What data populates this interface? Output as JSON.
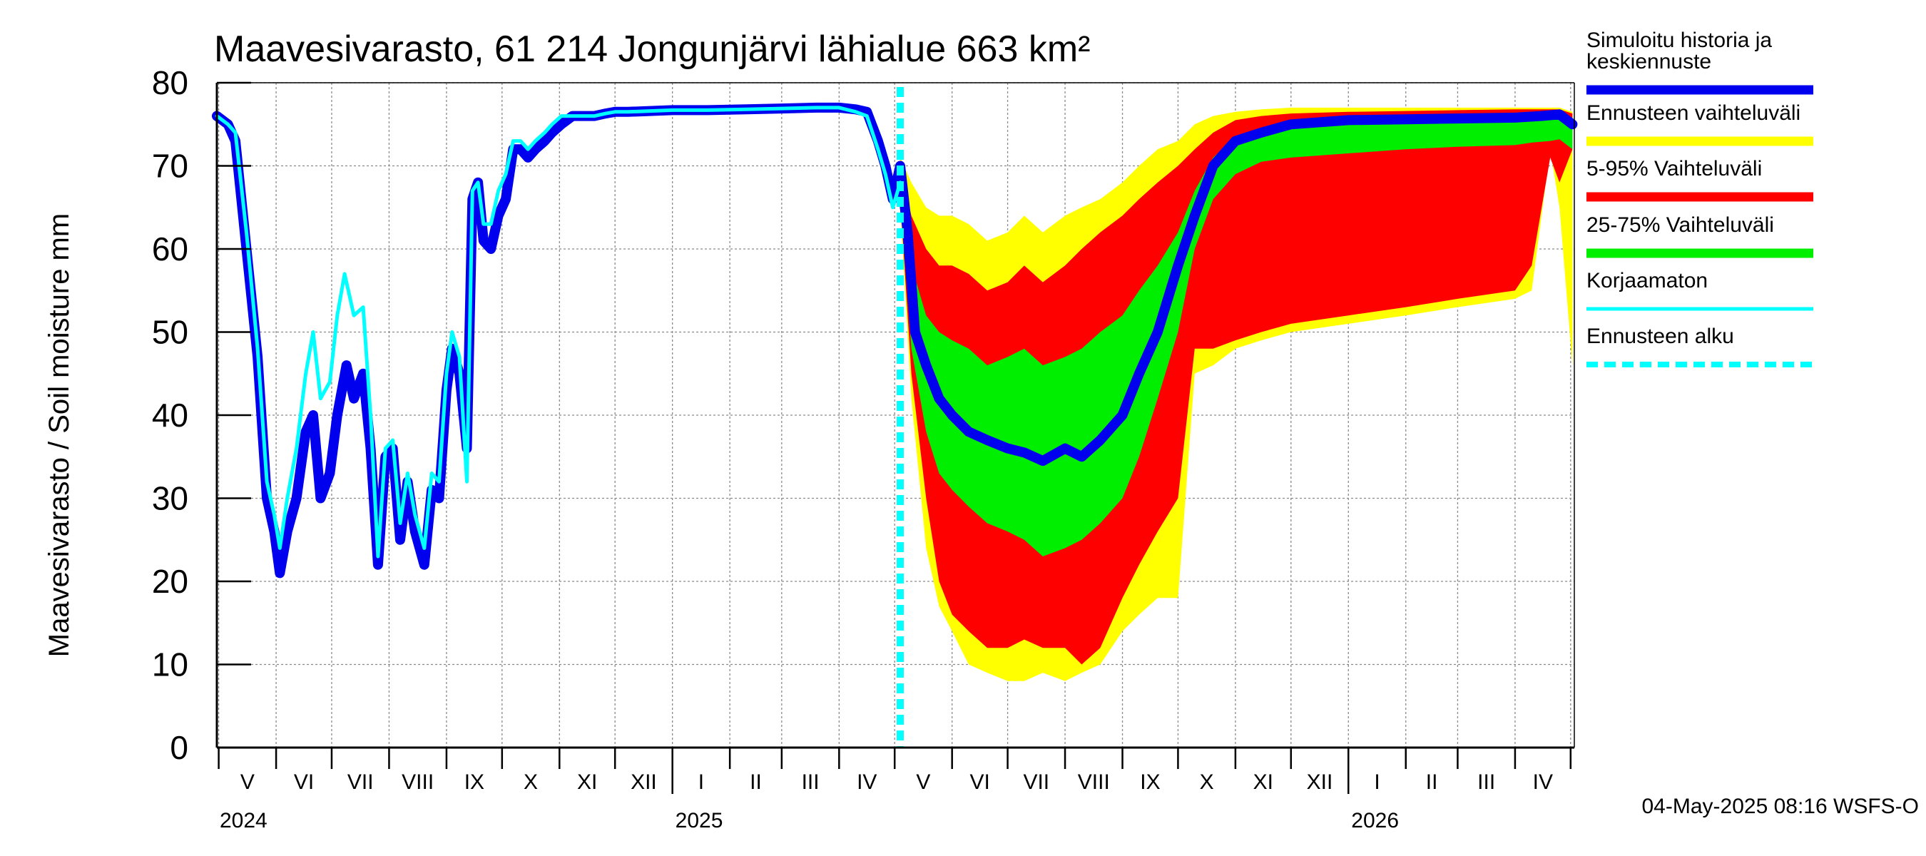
{
  "chart_data": {
    "type": "area",
    "title": "Maavesivarasto, 61 214 Jongunjärvi lähialue 663 km²",
    "ylabel": "Maavesivarasto / Soil moisture   mm",
    "ylim": [
      0,
      80
    ],
    "yticks": [
      0,
      10,
      20,
      30,
      40,
      50,
      60,
      70,
      80
    ],
    "xlim": [
      "2024-04-30",
      "2026-05-03"
    ],
    "grid": true,
    "legend_position": "right",
    "footer": "04-May-2025 08:16 WSFS-O",
    "forecast_start": "2025-05-04",
    "months": [
      {
        "label": "V",
        "start": "2024-05-01"
      },
      {
        "label": "VI",
        "start": "2024-06-01"
      },
      {
        "label": "VII",
        "start": "2024-07-01"
      },
      {
        "label": "VIII",
        "start": "2024-08-01"
      },
      {
        "label": "IX",
        "start": "2024-09-01"
      },
      {
        "label": "X",
        "start": "2024-10-01"
      },
      {
        "label": "XI",
        "start": "2024-11-01"
      },
      {
        "label": "XII",
        "start": "2024-12-01"
      },
      {
        "label": "I",
        "start": "2025-01-01"
      },
      {
        "label": "II",
        "start": "2025-02-01"
      },
      {
        "label": "III",
        "start": "2025-03-01"
      },
      {
        "label": "IV",
        "start": "2025-04-01"
      },
      {
        "label": "V",
        "start": "2025-05-01"
      },
      {
        "label": "VI",
        "start": "2025-06-01"
      },
      {
        "label": "VII",
        "start": "2025-07-01"
      },
      {
        "label": "VIII",
        "start": "2025-08-01"
      },
      {
        "label": "IX",
        "start": "2025-09-01"
      },
      {
        "label": "X",
        "start": "2025-10-01"
      },
      {
        "label": "XI",
        "start": "2025-11-01"
      },
      {
        "label": "XII",
        "start": "2025-12-01"
      },
      {
        "label": "I",
        "start": "2026-01-01"
      },
      {
        "label": "II",
        "start": "2026-02-01"
      },
      {
        "label": "III",
        "start": "2026-03-01"
      },
      {
        "label": "IV",
        "start": "2026-04-01"
      }
    ],
    "month_ends": [
      "2026-05-01"
    ],
    "years": [
      {
        "label": "2024",
        "start": "2024-04-30"
      },
      {
        "label": "2025",
        "start": "2025-01-01"
      },
      {
        "label": "2026",
        "start": "2026-01-01"
      }
    ],
    "legend": [
      {
        "label": "Simuloitu historia ja keskiennuste",
        "color": "#0000ee",
        "style": "solid"
      },
      {
        "label": "Ennusteen vaihteluväli",
        "color": "#ffff00",
        "style": "solid"
      },
      {
        "label": "5-95% Vaihteluväli",
        "color": "#ff0000",
        "style": "solid"
      },
      {
        "label": "25-75% Vaihteluväli",
        "color": "#00ee00",
        "style": "solid"
      },
      {
        "label": "Korjaamaton",
        "color": "#00ffff",
        "style": "solid"
      },
      {
        "label": "Ennusteen alku",
        "color": "#00ffff",
        "style": "dashed"
      }
    ],
    "series": [
      {
        "name": "Simuloitu historia ja keskiennuste",
        "color": "#0000ee",
        "x": [
          "2024-04-30",
          "2024-05-06",
          "2024-05-10",
          "2024-05-16",
          "2024-05-22",
          "2024-05-27",
          "2024-05-31",
          "2024-06-03",
          "2024-06-07",
          "2024-06-12",
          "2024-06-17",
          "2024-06-21",
          "2024-06-25",
          "2024-06-30",
          "2024-07-04",
          "2024-07-09",
          "2024-07-13",
          "2024-07-18",
          "2024-07-22",
          "2024-07-26",
          "2024-07-30",
          "2024-08-03",
          "2024-08-07",
          "2024-08-11",
          "2024-08-15",
          "2024-08-20",
          "2024-08-24",
          "2024-08-28",
          "2024-09-01",
          "2024-09-04",
          "2024-09-08",
          "2024-09-12",
          "2024-09-15",
          "2024-09-18",
          "2024-09-21",
          "2024-09-25",
          "2024-09-29",
          "2024-10-03",
          "2024-10-07",
          "2024-10-11",
          "2024-10-15",
          "2024-10-19",
          "2024-10-24",
          "2024-10-28",
          "2024-11-02",
          "2024-11-08",
          "2024-11-14",
          "2024-11-20",
          "2024-11-26",
          "2024-12-01",
          "2024-12-08",
          "2024-12-20",
          "2025-01-01",
          "2025-01-20",
          "2025-02-10",
          "2025-03-01",
          "2025-03-20",
          "2025-04-01",
          "2025-04-10",
          "2025-04-16",
          "2025-04-22",
          "2025-04-26",
          "2025-04-30",
          "2025-05-04",
          "2025-05-08",
          "2025-05-12",
          "2025-05-18",
          "2025-05-25",
          "2025-06-01",
          "2025-06-10",
          "2025-06-20",
          "2025-07-01",
          "2025-07-10",
          "2025-07-20",
          "2025-08-01",
          "2025-08-10",
          "2025-08-20",
          "2025-09-01",
          "2025-09-10",
          "2025-09-20",
          "2025-10-01",
          "2025-10-10",
          "2025-10-20",
          "2025-11-01",
          "2025-11-15",
          "2025-12-01",
          "2026-01-01",
          "2026-02-01",
          "2026-03-01",
          "2026-04-01",
          "2026-04-15",
          "2026-04-25",
          "2026-05-02"
        ],
        "y": [
          76,
          75,
          73,
          60,
          47,
          30,
          26,
          21,
          26,
          30,
          38,
          40,
          30,
          33,
          40,
          46,
          42,
          45,
          36,
          22,
          35,
          36,
          25,
          32,
          26,
          22,
          31,
          30,
          43,
          48,
          45,
          36,
          66,
          68,
          61,
          60,
          64,
          66,
          72,
          72,
          71,
          72,
          73,
          74,
          75,
          76,
          76,
          76,
          76.3,
          76.5,
          76.5,
          76.6,
          76.7,
          76.7,
          76.8,
          76.9,
          77,
          77,
          76.8,
          76.5,
          73,
          70,
          66,
          70,
          62,
          50,
          46,
          42,
          40,
          38,
          37,
          36,
          35.5,
          34.5,
          36,
          35,
          37,
          40,
          45,
          50,
          58,
          64,
          70,
          73,
          74,
          75,
          75.5,
          75.6,
          75.7,
          75.8,
          76,
          76.2,
          75
        ]
      },
      {
        "name": "Korjaamaton",
        "color": "#00ffff",
        "x": [
          "2024-04-30",
          "2024-05-06",
          "2024-05-10",
          "2024-05-16",
          "2024-05-22",
          "2024-05-27",
          "2024-05-31",
          "2024-06-03",
          "2024-06-07",
          "2024-06-12",
          "2024-06-17",
          "2024-06-21",
          "2024-06-25",
          "2024-06-30",
          "2024-07-04",
          "2024-07-08",
          "2024-07-13",
          "2024-07-18",
          "2024-07-22",
          "2024-07-26",
          "2024-07-30",
          "2024-08-03",
          "2024-08-07",
          "2024-08-11",
          "2024-08-15",
          "2024-08-20",
          "2024-08-24",
          "2024-08-28",
          "2024-09-01",
          "2024-09-04",
          "2024-09-08",
          "2024-09-12",
          "2024-09-15",
          "2024-09-18",
          "2024-09-21",
          "2024-09-25",
          "2024-09-29",
          "2024-10-03",
          "2024-10-07",
          "2024-10-11",
          "2024-10-15",
          "2024-10-19",
          "2024-10-24",
          "2024-10-28",
          "2024-11-02",
          "2024-11-08",
          "2024-11-14",
          "2024-11-20",
          "2024-11-26",
          "2024-12-01",
          "2024-12-08",
          "2024-12-20",
          "2025-01-01",
          "2025-01-20",
          "2025-02-10",
          "2025-03-01",
          "2025-03-20",
          "2025-04-01",
          "2025-04-10",
          "2025-04-16",
          "2025-04-22",
          "2025-04-26",
          "2025-04-30",
          "2025-05-04"
        ],
        "y": [
          76,
          75,
          74,
          62,
          48,
          32,
          28,
          24,
          30,
          36,
          45,
          50,
          42,
          44,
          52,
          57,
          52,
          53,
          40,
          23,
          36,
          37,
          27,
          33,
          28,
          24,
          33,
          32,
          45,
          50,
          47,
          32,
          67,
          68,
          63,
          63,
          67,
          69,
          73,
          73,
          72,
          73,
          74,
          75,
          76,
          76,
          76,
          76,
          76.3,
          76.5,
          76.5,
          76.6,
          76.7,
          76.7,
          76.8,
          76.9,
          77,
          77,
          76.5,
          76,
          72,
          69,
          65,
          68
        ]
      }
    ],
    "bands": [
      {
        "name": "Ennusteen vaihteluväli",
        "color": "#ffff00",
        "x": [
          "2025-05-04",
          "2025-05-10",
          "2025-05-18",
          "2025-05-25",
          "2025-06-01",
          "2025-06-10",
          "2025-06-20",
          "2025-07-01",
          "2025-07-10",
          "2025-07-20",
          "2025-08-01",
          "2025-08-10",
          "2025-08-20",
          "2025-09-01",
          "2025-09-10",
          "2025-09-20",
          "2025-10-01",
          "2025-10-10",
          "2025-10-20",
          "2025-11-01",
          "2025-11-15",
          "2025-12-01",
          "2026-01-01",
          "2026-02-01",
          "2026-03-01",
          "2026-04-01",
          "2026-04-10",
          "2026-04-20",
          "2026-04-25",
          "2026-05-02"
        ],
        "upper": [
          71,
          68,
          65,
          64,
          64,
          63,
          61,
          62,
          64,
          62,
          64,
          65,
          66,
          68,
          70,
          72,
          73,
          75,
          76,
          76.5,
          76.8,
          77,
          77,
          77,
          77,
          77,
          77,
          77,
          77,
          76.5
        ],
        "lower": [
          65,
          42,
          24,
          17,
          14,
          10,
          9,
          8,
          8,
          9,
          8,
          9,
          10,
          14,
          16,
          18,
          18,
          45,
          46,
          48,
          49,
          50,
          51,
          52,
          53,
          54,
          55,
          72,
          65,
          46
        ]
      },
      {
        "name": "5-95% Vaihteluväli",
        "color": "#ff0000",
        "x": [
          "2025-05-04",
          "2025-05-10",
          "2025-05-18",
          "2025-05-25",
          "2025-06-01",
          "2025-06-10",
          "2025-06-20",
          "2025-07-01",
          "2025-07-10",
          "2025-07-20",
          "2025-08-01",
          "2025-08-10",
          "2025-08-20",
          "2025-09-01",
          "2025-09-10",
          "2025-09-20",
          "2025-10-01",
          "2025-10-10",
          "2025-10-20",
          "2025-11-01",
          "2025-11-15",
          "2025-12-01",
          "2026-01-01",
          "2026-02-01",
          "2026-03-01",
          "2026-04-01",
          "2026-04-10",
          "2026-04-20",
          "2026-04-25",
          "2026-05-02"
        ],
        "upper": [
          70,
          64,
          60,
          58,
          58,
          57,
          55,
          56,
          58,
          56,
          58,
          60,
          62,
          64,
          66,
          68,
          70,
          72,
          74,
          75.5,
          76,
          76.3,
          76.5,
          76.6,
          76.7,
          76.8,
          76.8,
          76.8,
          76.8,
          76.3
        ],
        "lower": [
          66,
          45,
          30,
          20,
          16,
          14,
          12,
          12,
          13,
          12,
          12,
          10,
          12,
          18,
          22,
          26,
          30,
          48,
          48,
          49,
          50,
          51,
          52,
          53,
          54,
          55,
          58,
          71,
          68,
          72
        ]
      },
      {
        "name": "25-75% Vaihteluväli",
        "color": "#00ee00",
        "x": [
          "2025-05-04",
          "2025-05-10",
          "2025-05-18",
          "2025-05-25",
          "2025-06-01",
          "2025-06-10",
          "2025-06-20",
          "2025-07-01",
          "2025-07-10",
          "2025-07-20",
          "2025-08-01",
          "2025-08-10",
          "2025-08-20",
          "2025-09-01",
          "2025-09-10",
          "2025-09-20",
          "2025-10-01",
          "2025-10-10",
          "2025-10-20",
          "2025-11-01",
          "2025-11-15",
          "2025-12-01",
          "2026-01-01",
          "2026-02-01",
          "2026-03-01",
          "2026-04-01",
          "2026-04-10",
          "2026-04-20",
          "2026-04-25",
          "2026-05-02"
        ],
        "upper": [
          69,
          58,
          52,
          50,
          49,
          48,
          46,
          47,
          48,
          46,
          47,
          48,
          50,
          52,
          55,
          58,
          62,
          67,
          71,
          73.5,
          74.5,
          75,
          75.5,
          75.7,
          75.9,
          76,
          76.2,
          76.2,
          76.2,
          75.8
        ],
        "lower": [
          67,
          48,
          38,
          33,
          31,
          29,
          27,
          26,
          25,
          23,
          24,
          25,
          27,
          30,
          35,
          42,
          50,
          60,
          66,
          69,
          70.5,
          71,
          71.5,
          72,
          72.3,
          72.5,
          72.8,
          73,
          73.2,
          72
        ]
      }
    ]
  }
}
